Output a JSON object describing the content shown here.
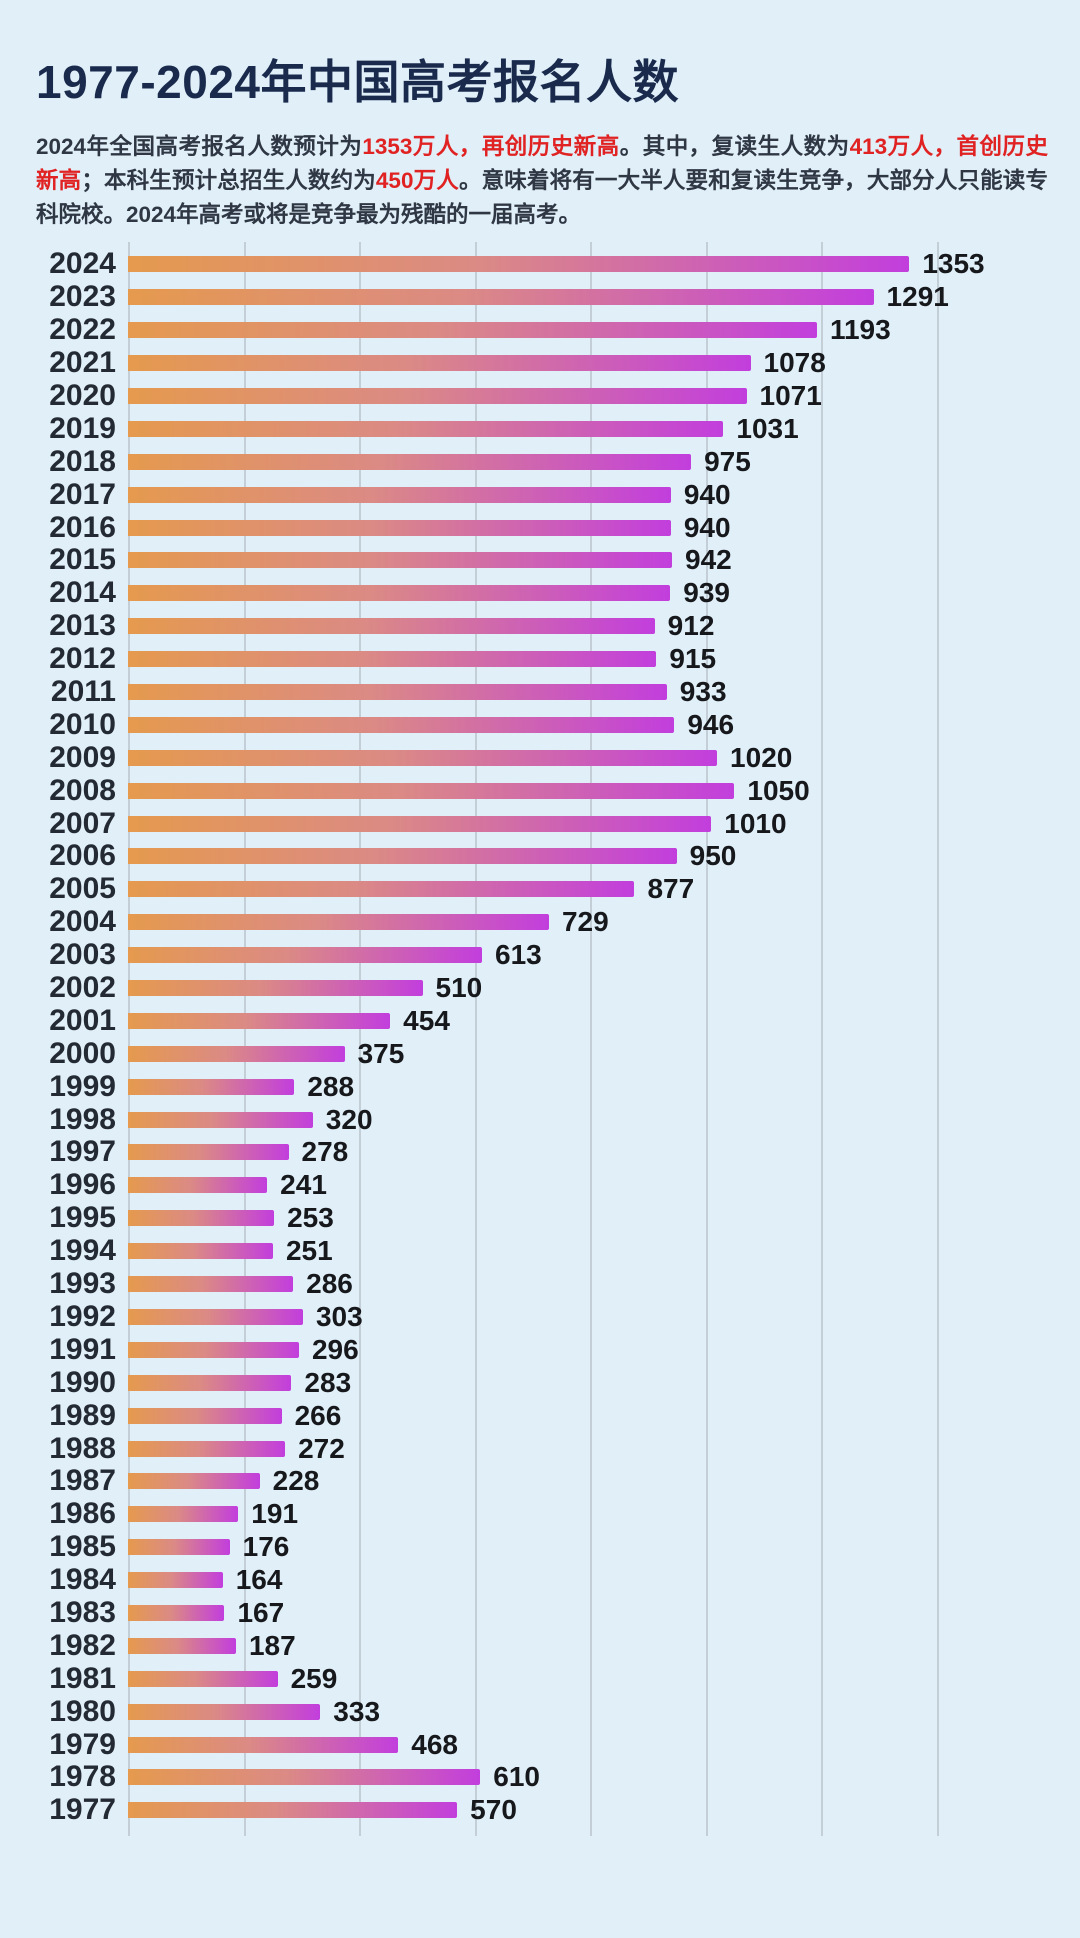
{
  "title": "1977-2024年中国高考报名人数",
  "subtitle_segments": [
    {
      "text": "2024年全国高考报名人数预计为",
      "red": false
    },
    {
      "text": "1353万人，再创历史新高",
      "red": true
    },
    {
      "text": "。其中，复读生人数为",
      "red": false
    },
    {
      "text": "413万人，首创历史新高",
      "red": true
    },
    {
      "text": "；本科生预计总招生人数约为",
      "red": false
    },
    {
      "text": "450万人",
      "red": true
    },
    {
      "text": "。意味着将有一大半人要和复读生竞争，大部分人只能读专科院校。2024年高考或将是竞争最为残酷的一届高考。",
      "red": false
    }
  ],
  "chart_data": {
    "type": "bar",
    "orientation": "horizontal",
    "title": "1977-2024年中国高考报名人数",
    "unit": "万人",
    "categories": [
      "2024",
      "2023",
      "2022",
      "2021",
      "2020",
      "2019",
      "2018",
      "2017",
      "2016",
      "2015",
      "2014",
      "2013",
      "2012",
      "2011",
      "2010",
      "2009",
      "2008",
      "2007",
      "2006",
      "2005",
      "2004",
      "2003",
      "2002",
      "2001",
      "2000",
      "1999",
      "1998",
      "1997",
      "1996",
      "1995",
      "1994",
      "1993",
      "1992",
      "1991",
      "1990",
      "1989",
      "1988",
      "1987",
      "1986",
      "1985",
      "1984",
      "1983",
      "1982",
      "1981",
      "1980",
      "1979",
      "1978",
      "1977"
    ],
    "values": [
      1353,
      1291,
      1193,
      1078,
      1071,
      1031,
      975,
      940,
      940,
      942,
      939,
      912,
      915,
      933,
      946,
      1020,
      1050,
      1010,
      950,
      877,
      729,
      613,
      510,
      454,
      375,
      288,
      320,
      278,
      241,
      253,
      251,
      286,
      303,
      296,
      283,
      266,
      272,
      228,
      191,
      176,
      164,
      167,
      187,
      259,
      333,
      468,
      610,
      570
    ],
    "xlim": [
      0,
      1400
    ],
    "gridline_step": 200,
    "grid": true,
    "legend": "none",
    "value_labels": "end-of-bar"
  },
  "colors": {
    "background": "#e0eff8",
    "title": "#192a4d",
    "subtitle": "#2f3744",
    "highlight_red": "#e02222",
    "bar_gradient_start": "#e59a4e",
    "bar_gradient_mid": "#db8a85",
    "bar_gradient_end": "#c23edd",
    "gridline": "#c3ced6",
    "year_label": "#242a33",
    "value_label": "#16181c"
  }
}
